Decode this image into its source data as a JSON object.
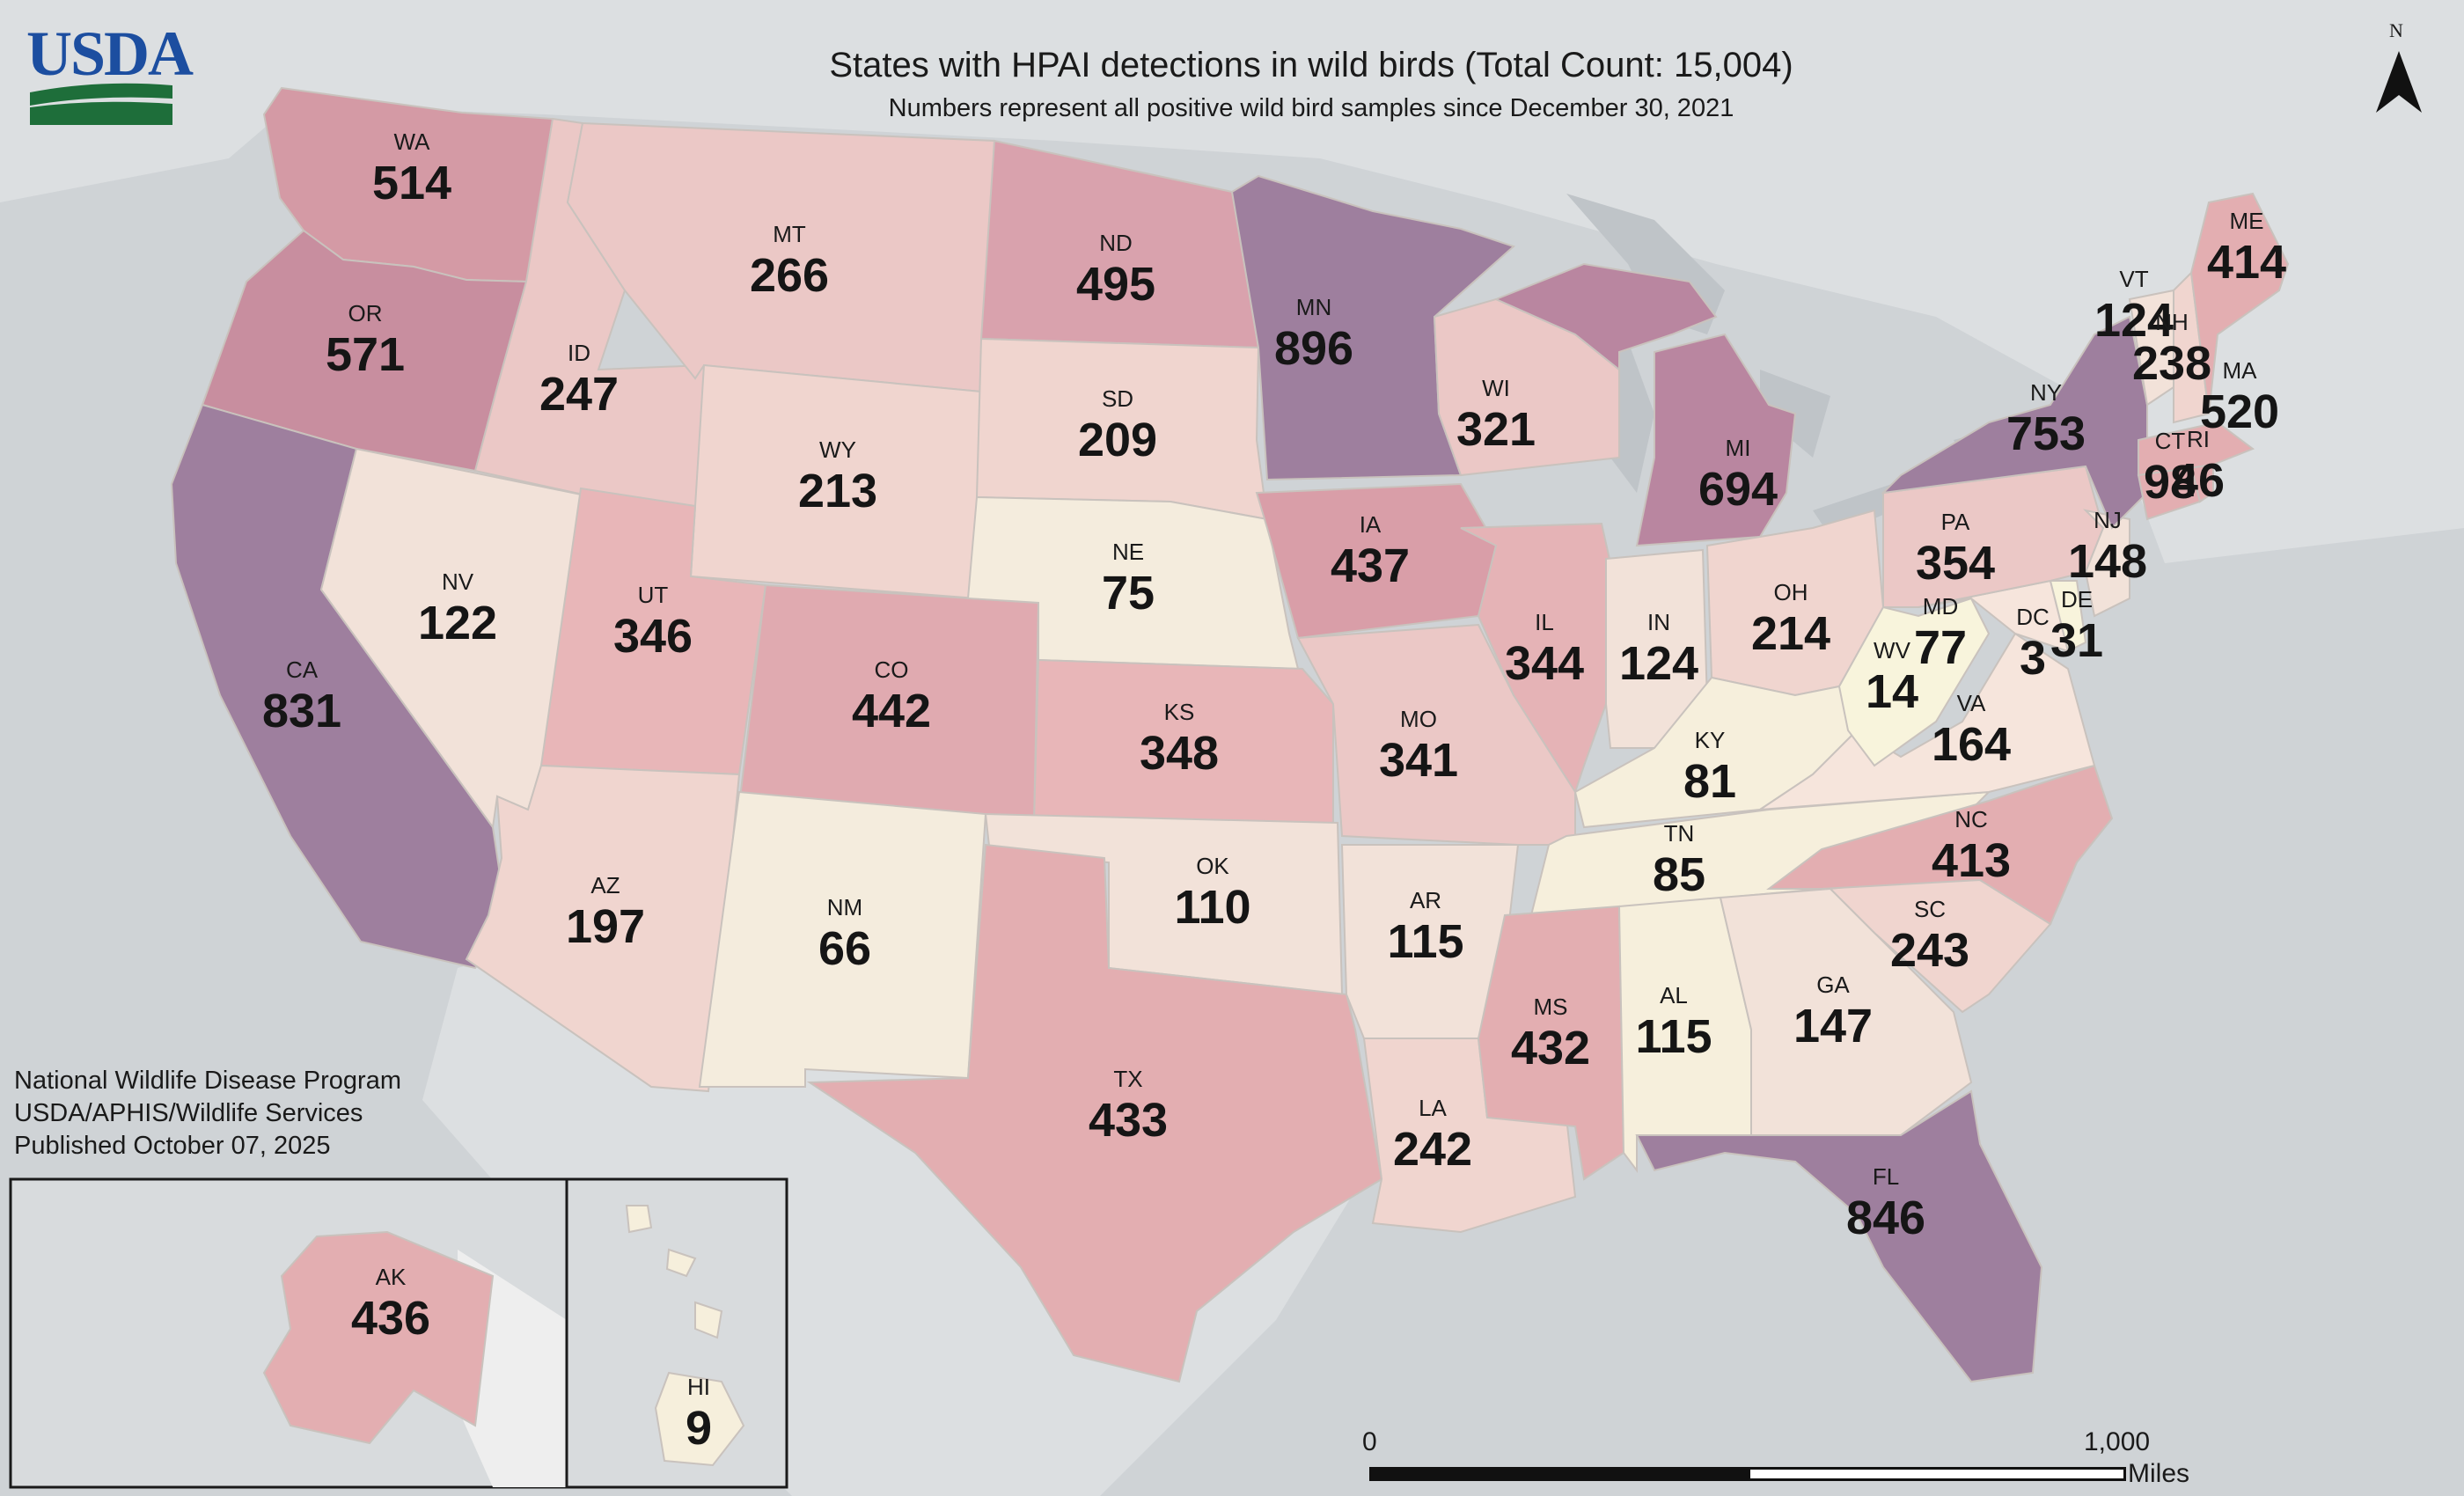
{
  "title": "States with HPAI detections in wild birds (Total Count: 15,004)",
  "subtitle": "Numbers represent all positive wild bird samples since December 30, 2021",
  "logo_text": "USDA",
  "credits": [
    "National Wildlife Disease Program",
    "USDA/APHIS/Wildlife Services",
    "Published October 07, 2025"
  ],
  "north_label": "N",
  "scale": {
    "zero": "0",
    "max": "1,000",
    "unit": "Miles"
  },
  "legend_colors": [
    "#f6f3d9",
    "#f2e8da",
    "#f0d5cf",
    "#ebc8c6",
    "#e3aeb1",
    "#d49aa5",
    "#b986a0",
    "#9e7f9e"
  ],
  "states": [
    {
      "abbr": "WA",
      "count": "514"
    },
    {
      "abbr": "OR",
      "count": "571"
    },
    {
      "abbr": "CA",
      "count": "831"
    },
    {
      "abbr": "ID",
      "count": "247"
    },
    {
      "abbr": "NV",
      "count": "122"
    },
    {
      "abbr": "MT",
      "count": "266"
    },
    {
      "abbr": "WY",
      "count": "213"
    },
    {
      "abbr": "UT",
      "count": "346"
    },
    {
      "abbr": "AZ",
      "count": "197"
    },
    {
      "abbr": "CO",
      "count": "442"
    },
    {
      "abbr": "NM",
      "count": "66"
    },
    {
      "abbr": "ND",
      "count": "495"
    },
    {
      "abbr": "SD",
      "count": "209"
    },
    {
      "abbr": "NE",
      "count": "75"
    },
    {
      "abbr": "KS",
      "count": "348"
    },
    {
      "abbr": "OK",
      "count": "110"
    },
    {
      "abbr": "TX",
      "count": "433"
    },
    {
      "abbr": "MN",
      "count": "896"
    },
    {
      "abbr": "IA",
      "count": "437"
    },
    {
      "abbr": "MO",
      "count": "341"
    },
    {
      "abbr": "AR",
      "count": "115"
    },
    {
      "abbr": "LA",
      "count": "242"
    },
    {
      "abbr": "WI",
      "count": "321"
    },
    {
      "abbr": "IL",
      "count": "344"
    },
    {
      "abbr": "MI",
      "count": "694"
    },
    {
      "abbr": "IN",
      "count": "124"
    },
    {
      "abbr": "OH",
      "count": "214"
    },
    {
      "abbr": "KY",
      "count": "81"
    },
    {
      "abbr": "TN",
      "count": "85"
    },
    {
      "abbr": "MS",
      "count": "432"
    },
    {
      "abbr": "AL",
      "count": "115"
    },
    {
      "abbr": "GA",
      "count": "147"
    },
    {
      "abbr": "FL",
      "count": "846"
    },
    {
      "abbr": "SC",
      "count": "243"
    },
    {
      "abbr": "NC",
      "count": "413"
    },
    {
      "abbr": "VA",
      "count": "164"
    },
    {
      "abbr": "WV",
      "count": "14"
    },
    {
      "abbr": "MD",
      "count": "77"
    },
    {
      "abbr": "DC",
      "count": "3"
    },
    {
      "abbr": "DE",
      "count": "31"
    },
    {
      "abbr": "PA",
      "count": "354"
    },
    {
      "abbr": "NJ",
      "count": "148"
    },
    {
      "abbr": "NY",
      "count": "753"
    },
    {
      "abbr": "CT",
      "count": "98"
    },
    {
      "abbr": "RI",
      "count": "46"
    },
    {
      "abbr": "MA",
      "count": "520"
    },
    {
      "abbr": "VT",
      "count": "124"
    },
    {
      "abbr": "NH",
      "count": "238"
    },
    {
      "abbr": "ME",
      "count": "414"
    },
    {
      "abbr": "AK",
      "count": "436"
    },
    {
      "abbr": "HI",
      "count": "9"
    }
  ]
}
